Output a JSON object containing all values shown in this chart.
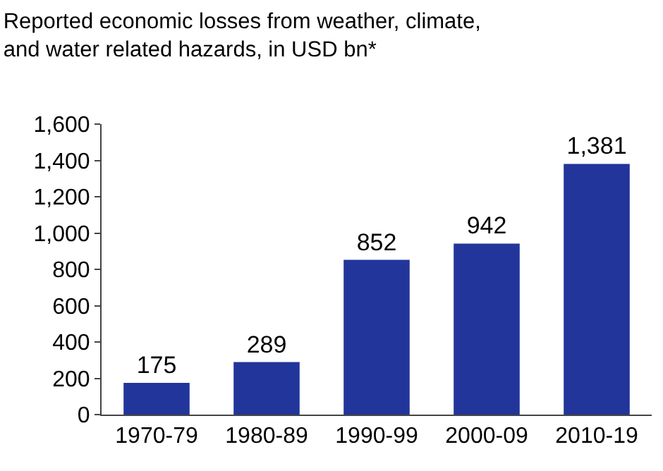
{
  "chart_data": {
    "type": "bar",
    "title": "Reported economic losses from weather, climate, and water related hazards, in USD bn*",
    "categories": [
      "1970-79",
      "1980-89",
      "1990-99",
      "2000-09",
      "2010-19"
    ],
    "values": [
      175,
      289,
      852,
      942,
      1381
    ],
    "color": "#22359a",
    "value_labels": [
      "175",
      "289",
      "852",
      "942",
      "1,381"
    ],
    "ylim": [
      0,
      1600
    ],
    "yticks": [
      0,
      200,
      400,
      600,
      800,
      {
        "value": 1000,
        "label": "1,000"
      },
      {
        "value": 1200,
        "label": "1,200"
      },
      {
        "value": 1400,
        "label": "1,400"
      },
      {
        "value": 1600,
        "label": "1,600"
      }
    ],
    "grid": false
  }
}
